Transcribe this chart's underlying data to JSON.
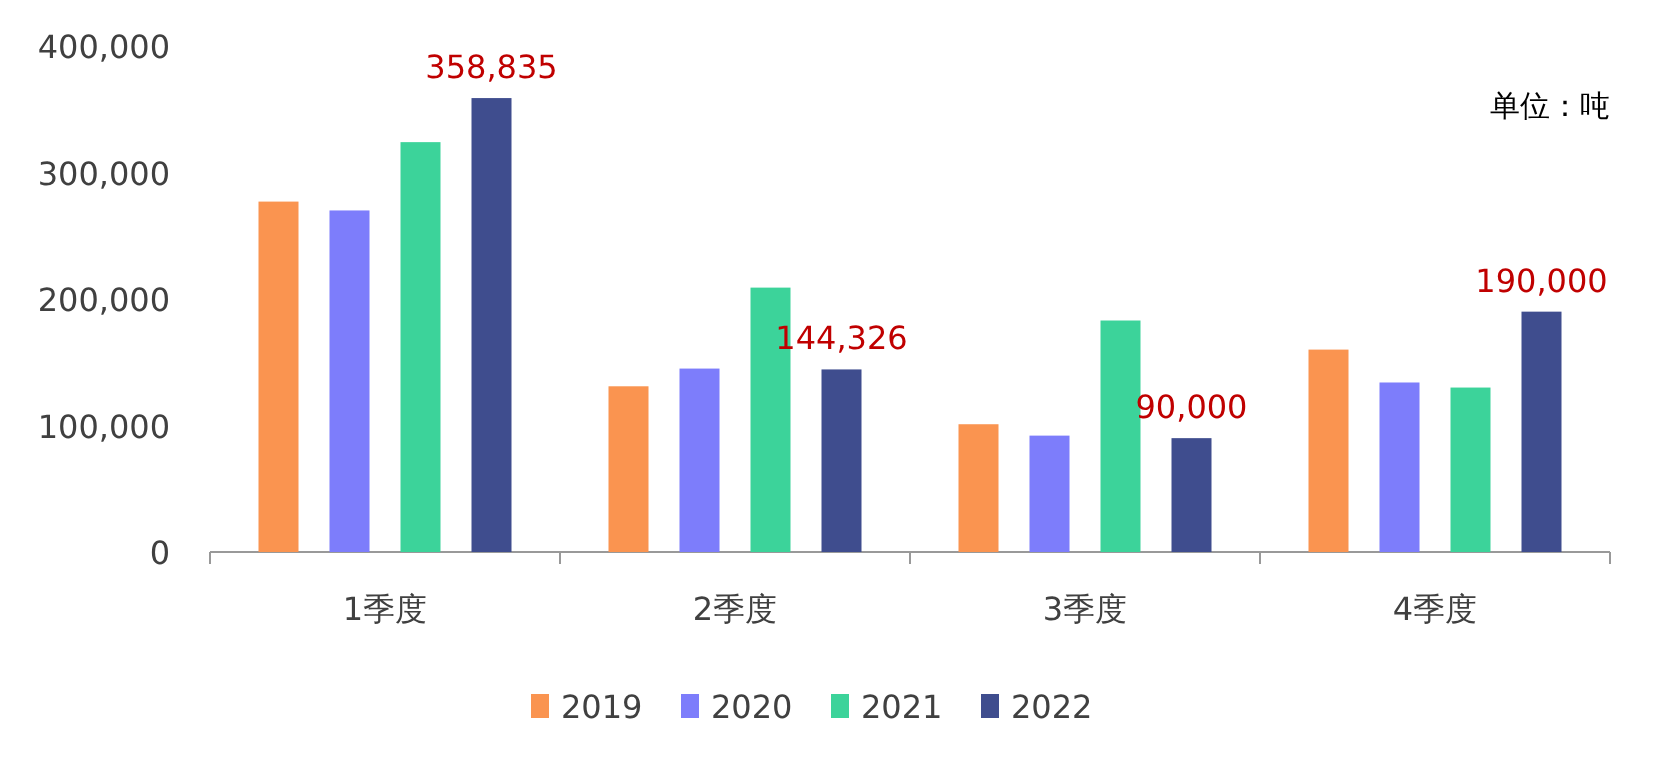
{
  "chart_data": {
    "type": "bar",
    "categories": [
      "1季度",
      "2季度",
      "3季度",
      "4季度"
    ],
    "series": [
      {
        "name": "2019",
        "color": "#fa9450",
        "values": [
          277000,
          131000,
          101000,
          160000
        ]
      },
      {
        "name": "2020",
        "color": "#7d7dfb",
        "values": [
          270000,
          145000,
          92000,
          134000
        ]
      },
      {
        "name": "2021",
        "color": "#3cd39a",
        "values": [
          324000,
          209000,
          183000,
          130000
        ]
      },
      {
        "name": "2022",
        "color": "#3f4d8e",
        "values": [
          358835,
          144326,
          90000,
          190000
        ],
        "value_labels": [
          "358,835",
          "144,326",
          "90,000",
          "190,000"
        ]
      }
    ],
    "ylim": [
      0,
      400000
    ],
    "yticks": [
      {
        "value": 0,
        "label": "0"
      },
      {
        "value": 100000,
        "label": "100,000"
      },
      {
        "value": 200000,
        "label": "200,000"
      },
      {
        "value": 300000,
        "label": "300,000"
      },
      {
        "value": 400000,
        "label": "400,000"
      }
    ],
    "annotations": [
      "单位：吨"
    ],
    "legend": "bottom",
    "grid": false
  }
}
